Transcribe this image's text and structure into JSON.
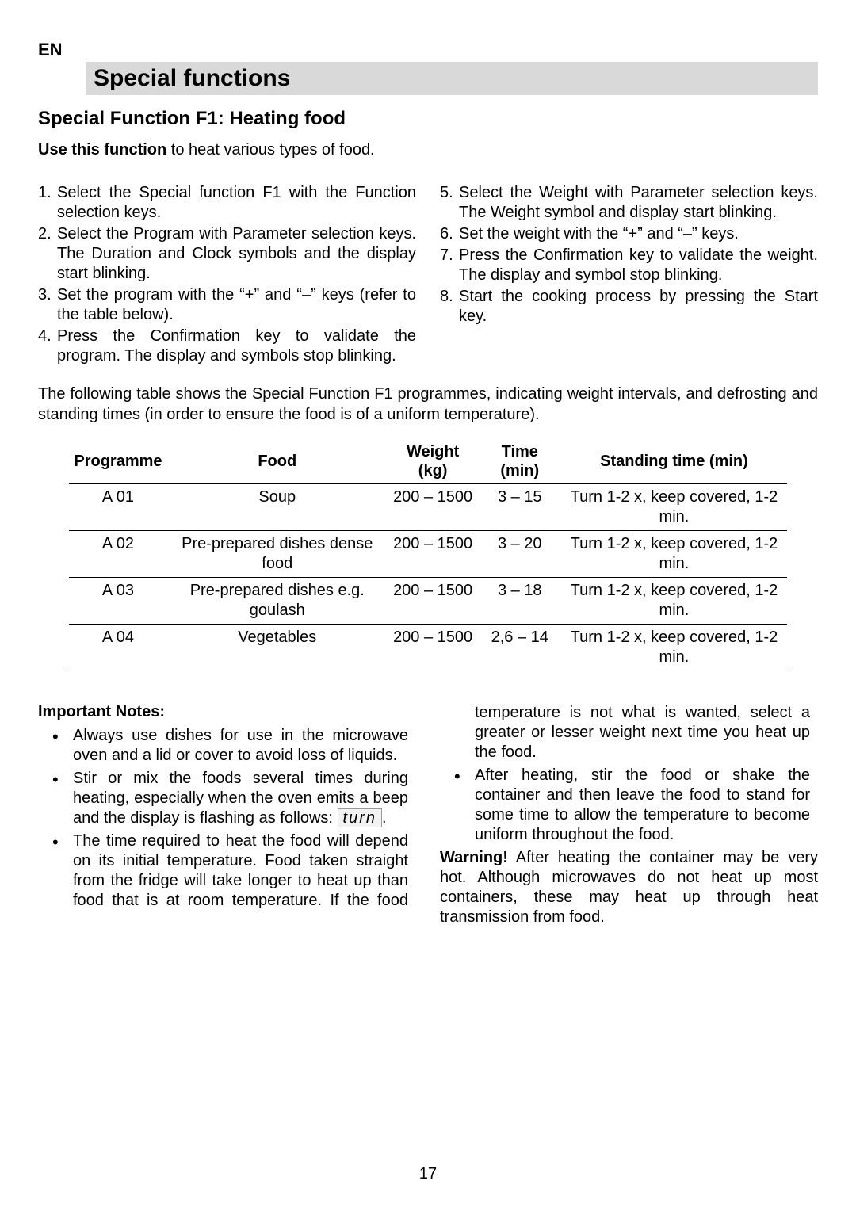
{
  "langCode": "EN",
  "titleBar": "Special functions",
  "subheading": "Special Function F1: Heating food",
  "introBold": "Use this function",
  "introRest": " to heat various types of food.",
  "stepsLeft": [
    "Select the Special function F1 with the Function selection keys.",
    "Select the Program with Parameter selection keys. The Duration and Clock symbols and the display start blinking.",
    "Set the program with the “+” and “–” keys (refer to the table below).",
    "Press the Confirmation key to validate the program. The display and symbols stop blinking."
  ],
  "stepsRight": [
    "Select the Weight with Parameter selection keys. The Weight symbol and display start blinking.",
    "Set the weight with the “+” and “–” keys.",
    "Press the Confirmation key to validate the weight. The display and symbol stop blinking.",
    "Start the cooking process by pressing the Start key."
  ],
  "tableIntro": "The following table shows the Special Function F1 programmes, indicating weight intervals, and defrosting and standing times (in order to ensure the food is of a uniform temperature).",
  "table": {
    "headers": [
      "Programme",
      "Food",
      "Weight (kg)",
      "Time (min)",
      "Standing time (min)"
    ],
    "rows": [
      [
        "A  01",
        "Soup",
        "200 – 1500",
        "3 – 15",
        "Turn 1-2 x, keep covered, 1-2 min."
      ],
      [
        "A  02",
        "Pre-prepared dishes dense food",
        "200 – 1500",
        "3 – 20",
        "Turn 1-2 x, keep covered, 1-2 min."
      ],
      [
        "A  03",
        "Pre-prepared dishes e.g. goulash",
        "200 – 1500",
        "3 – 18",
        "Turn 1-2 x, keep covered, 1-2 min."
      ],
      [
        "A  04",
        "Vegetables",
        "200 – 1500",
        "2,6  – 14",
        "Turn 1-2 x, keep covered, 1-2 min."
      ]
    ]
  },
  "notesHeading": "Important Notes:",
  "note1": "Always use dishes for use in the microwave oven and a lid or cover to avoid loss of liquids.",
  "note2Start": "Stir or mix the foods several times during heating, especially when the oven emits a beep and the display is flashing as follows: ",
  "note2Turn": "turn",
  "note2End": ".",
  "note3": "The time required to heat the food will depend on its initial temperature. Food taken straight from the fridge will take longer to heat up than food that is at room temperature. If the food temperature is not what is wanted, select a greater or lesser weight next time you heat up the food.",
  "note4": "After heating, stir the food or shake the container and then leave the food to stand for some time to allow the temperature to become uniform throughout the food.",
  "warningBold": "Warning!",
  "warningRest": " After heating the container may be very hot. Although microwaves do not heat up most containers, these may heat up through heat transmission from food.",
  "pageNum": "17"
}
